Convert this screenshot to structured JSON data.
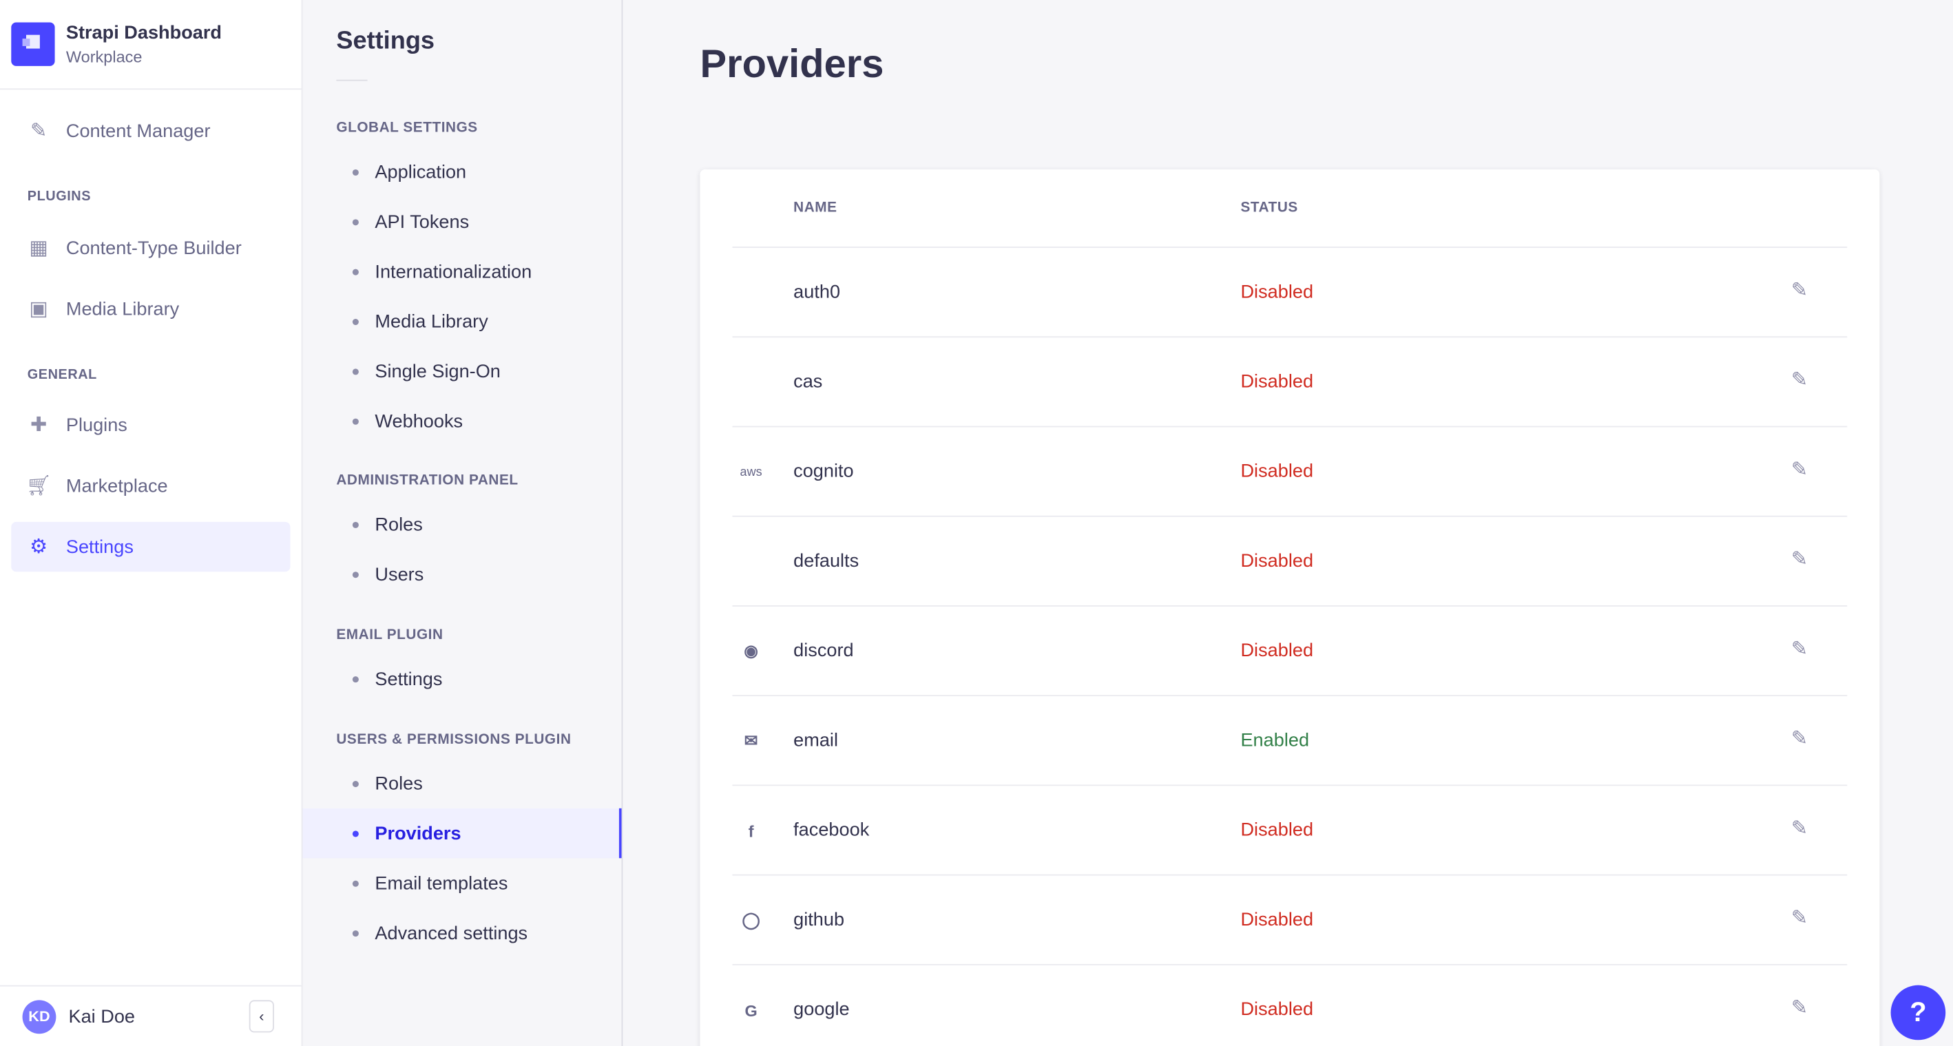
{
  "brand": {
    "title": "Strapi Dashboard",
    "subtitle": "Workplace"
  },
  "nav": {
    "content_manager": "Content Manager",
    "plugins_heading": "PLUGINS",
    "ctb": "Content-Type Builder",
    "media": "Media Library",
    "general_heading": "GENERAL",
    "plugins": "Plugins",
    "marketplace": "Marketplace",
    "settings": "Settings"
  },
  "user": {
    "initials": "KD",
    "name": "Kai Doe"
  },
  "settings_nav": {
    "title": "Settings",
    "groups": [
      {
        "label": "GLOBAL SETTINGS",
        "items": [
          "Application",
          "API Tokens",
          "Internationalization",
          "Media Library",
          "Single Sign-On",
          "Webhooks"
        ]
      },
      {
        "label": "ADMINISTRATION PANEL",
        "items": [
          "Roles",
          "Users"
        ]
      },
      {
        "label": "EMAIL PLUGIN",
        "items": [
          "Settings"
        ]
      },
      {
        "label": "USERS & PERMISSIONS PLUGIN",
        "items": [
          "Roles",
          "Providers",
          "Email templates",
          "Advanced settings"
        ]
      }
    ],
    "active": "Providers"
  },
  "page": {
    "title": "Providers",
    "columns": {
      "name": "NAME",
      "status": "STATUS"
    }
  },
  "colors": {
    "accent": "#4945ff",
    "disabled": "#d02b20",
    "enabled": "#328048"
  },
  "providers": [
    {
      "icon": "",
      "name": "auth0",
      "status": "Disabled"
    },
    {
      "icon": "",
      "name": "cas",
      "status": "Disabled"
    },
    {
      "icon": "aws-icon",
      "name": "cognito",
      "status": "Disabled"
    },
    {
      "icon": "",
      "name": "defaults",
      "status": "Disabled"
    },
    {
      "icon": "discord-icon",
      "name": "discord",
      "status": "Disabled"
    },
    {
      "icon": "email-icon",
      "name": "email",
      "status": "Enabled"
    },
    {
      "icon": "facebook-icon",
      "name": "facebook",
      "status": "Disabled"
    },
    {
      "icon": "github-icon",
      "name": "github",
      "status": "Disabled"
    },
    {
      "icon": "google-icon",
      "name": "google",
      "status": "Disabled"
    }
  ],
  "help": {
    "label": "?"
  }
}
